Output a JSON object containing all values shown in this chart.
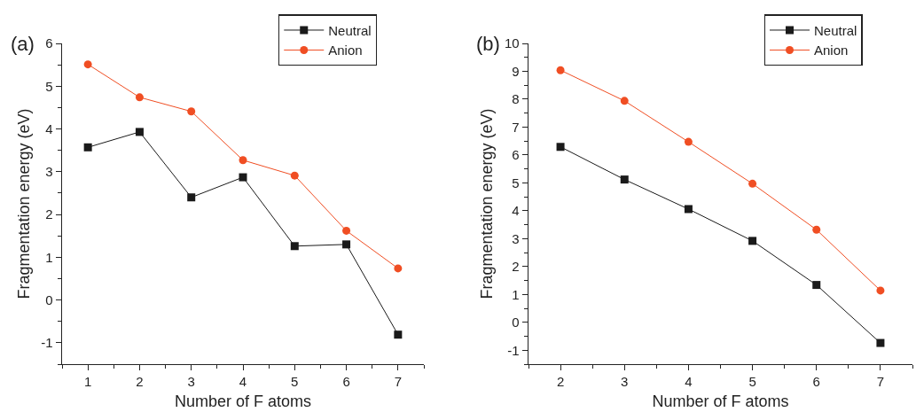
{
  "chart_data": [
    {
      "type": "line",
      "annotations": [
        "(a)"
      ],
      "xlabel": "Number of F atoms",
      "ylabel": "Fragmentation energy (eV)",
      "x": [
        1,
        2,
        3,
        4,
        5,
        6,
        7
      ],
      "series": [
        {
          "name": "Neutral",
          "color": "#1a1a1a",
          "marker": "square",
          "values": [
            3.57,
            3.93,
            2.4,
            2.87,
            1.26,
            1.3,
            -0.81
          ]
        },
        {
          "name": "Anion",
          "color": "#f04e23",
          "marker": "circle",
          "values": [
            5.51,
            4.74,
            4.41,
            3.27,
            2.91,
            1.62,
            0.74
          ]
        }
      ],
      "xlim": [
        0.5,
        7.5
      ],
      "xticks": [
        1,
        2,
        3,
        4,
        5,
        6,
        7
      ],
      "ylim": [
        -1.5,
        6
      ],
      "yticks": [
        -1,
        0,
        1,
        2,
        3,
        4,
        5,
        6
      ],
      "grid": false,
      "legend": "top right",
      "line_style": "solid"
    },
    {
      "type": "line",
      "annotations": [
        "(b)"
      ],
      "xlabel": "Number of F atoms",
      "ylabel": "Fragmentation energy (eV)",
      "x": [
        2,
        3,
        4,
        5,
        6,
        7
      ],
      "series": [
        {
          "name": "Neutral",
          "color": "#1a1a1a",
          "marker": "square",
          "values": [
            6.29,
            5.12,
            4.06,
            2.92,
            1.34,
            -0.74
          ]
        },
        {
          "name": "Anion",
          "color": "#f04e23",
          "marker": "circle",
          "values": [
            9.04,
            7.94,
            6.47,
            4.97,
            3.32,
            1.14
          ]
        }
      ],
      "xlim": [
        1.5,
        7.5
      ],
      "xticks": [
        2,
        3,
        4,
        5,
        6,
        7
      ],
      "ylim": [
        -1.5,
        10
      ],
      "yticks": [
        -1,
        0,
        1,
        2,
        3,
        4,
        5,
        6,
        7,
        8,
        9,
        10
      ],
      "grid": false,
      "legend": "top right",
      "line_style": "solid"
    }
  ]
}
